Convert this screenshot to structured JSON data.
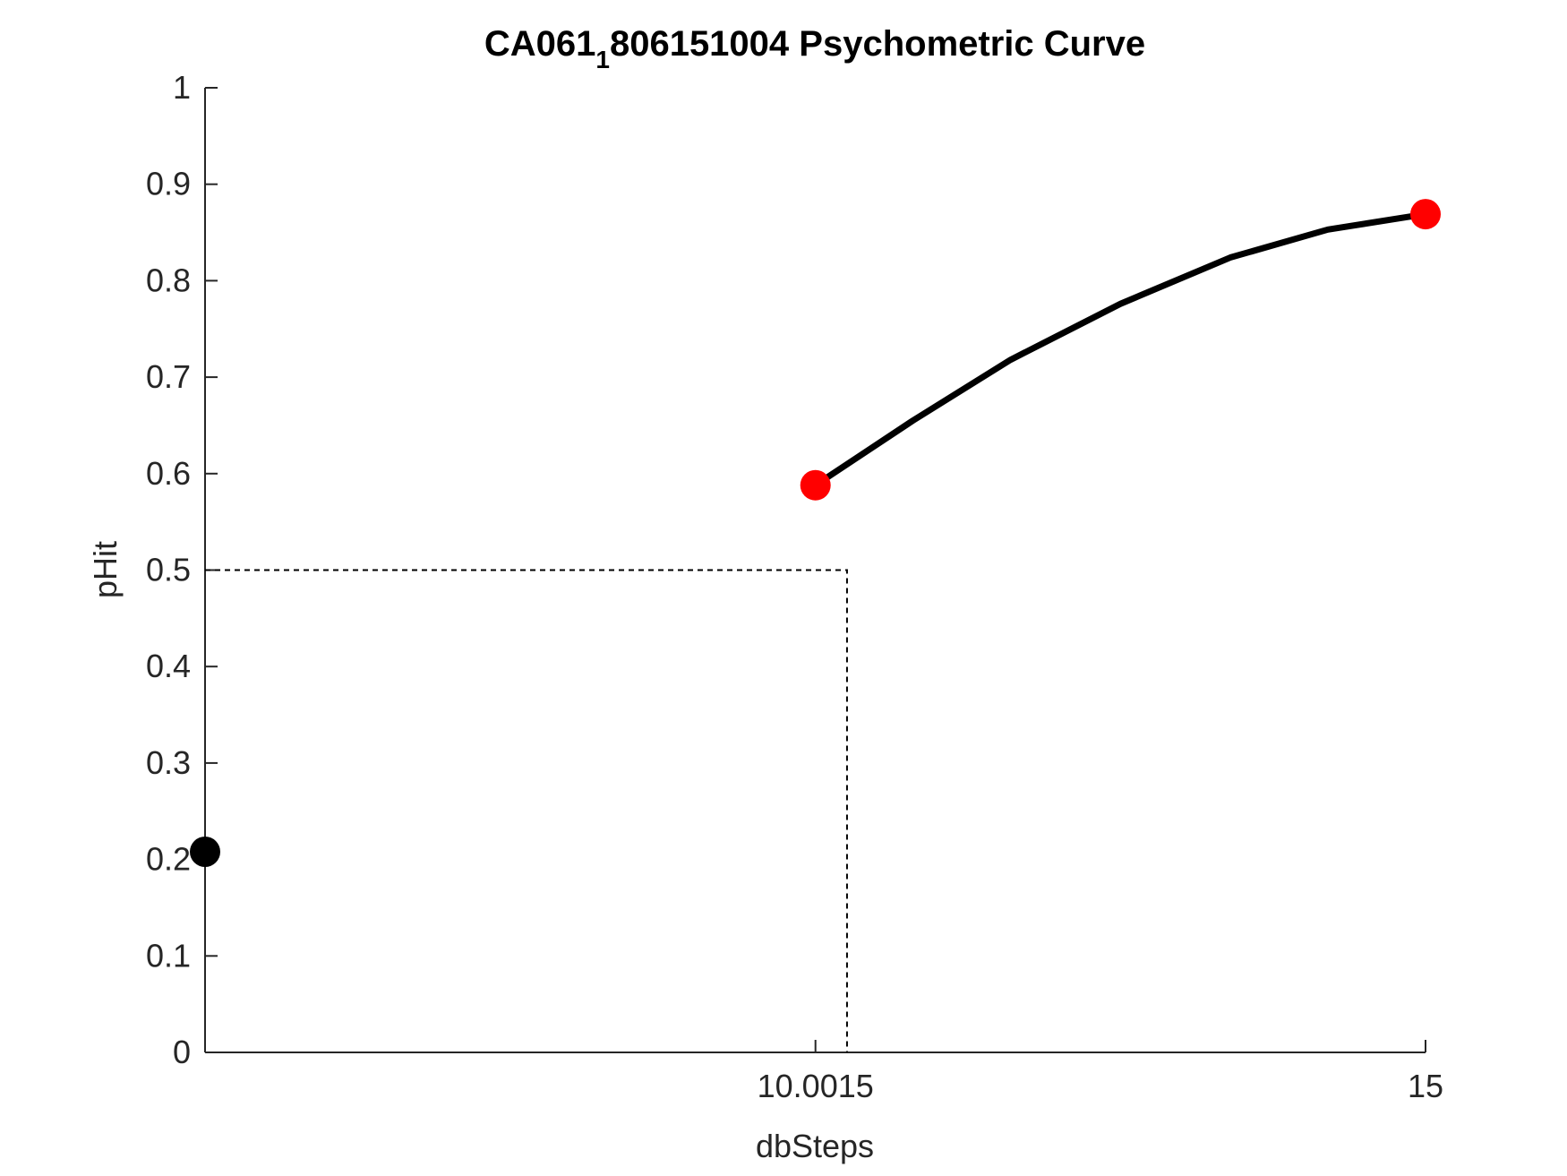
{
  "chart_data": {
    "type": "scatter",
    "title_parts": [
      "CA061",
      "1",
      "806151004 Psychometric Curve"
    ],
    "x_label": "dbSteps",
    "y_label": "pHit",
    "xlim": [
      5,
      15
    ],
    "xticks": [
      10.0015,
      15
    ],
    "ylim": [
      0,
      1
    ],
    "yticks": [
      0,
      0.1,
      0.2,
      0.3,
      0.4,
      0.5,
      0.6,
      0.7,
      0.8,
      0.9,
      1
    ],
    "series": [
      {
        "color": "#000000",
        "x": [
          5
        ],
        "values": [
          0.208
        ]
      },
      {
        "color": "#ff0000",
        "x": [
          10.0015,
          15
        ],
        "values": [
          0.588,
          0.869
        ]
      }
    ],
    "curve": {
      "color": "#000000",
      "x": [
        10.0015,
        10.8,
        11.6,
        12.5,
        13.4,
        14.2,
        15
      ],
      "values": [
        0.588,
        0.655,
        0.718,
        0.776,
        0.824,
        0.853,
        0.869
      ]
    },
    "threshold": {
      "x": 10.26,
      "y": 0.5
    }
  }
}
